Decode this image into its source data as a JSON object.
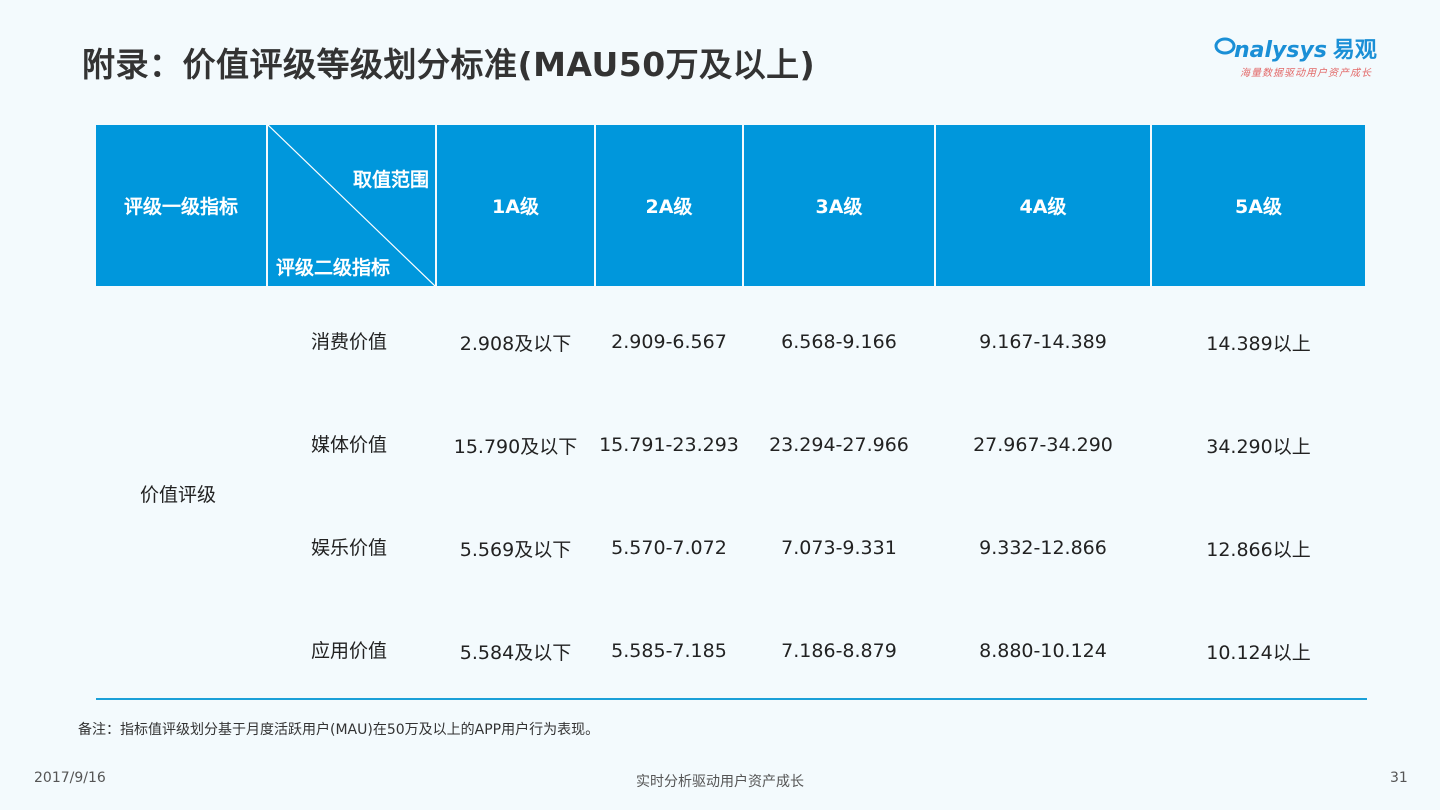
{
  "header": {
    "title": "附录：价值评级等级划分标准(MAU50万及以上)",
    "logo_text": "nalysys",
    "logo_cn": "易观",
    "logo_slogan": "海量数据驱动用户资产成长",
    "brand_color": "#1a8fd6"
  },
  "table": {
    "header_color": "#0097dc",
    "col_first": "评级一级指标",
    "diag_top": "取值范围",
    "diag_bottom": "评级二级指标",
    "levels": [
      "1A级",
      "2A级",
      "3A级",
      "4A级",
      "5A级"
    ],
    "group_label": "价值评级",
    "rows": [
      {
        "label": "消费价值",
        "values": [
          "2.908及以下",
          "2.909-6.567",
          "6.568-9.166",
          "9.167-14.389",
          "14.389以上"
        ]
      },
      {
        "label": "媒体价值",
        "values": [
          "15.790及以下",
          "15.791-23.293",
          "23.294-27.966",
          "27.967-34.290",
          "34.290以上"
        ]
      },
      {
        "label": "娱乐价值",
        "values": [
          "5.569及以下",
          "5.570-7.072",
          "7.073-9.331",
          "9.332-12.866",
          "12.866以上"
        ]
      },
      {
        "label": "应用价值",
        "values": [
          "5.584及以下",
          "5.585-7.185",
          "7.186-8.879",
          "8.880-10.124",
          "10.124以上"
        ]
      }
    ]
  },
  "note": "备注：指标值评级划分基于月度活跃用户(MAU)在50万及以上的APP用户行为表现。",
  "footer": {
    "date": "2017/9/16",
    "center": "实时分析驱动用户资产成长",
    "page": "31"
  }
}
